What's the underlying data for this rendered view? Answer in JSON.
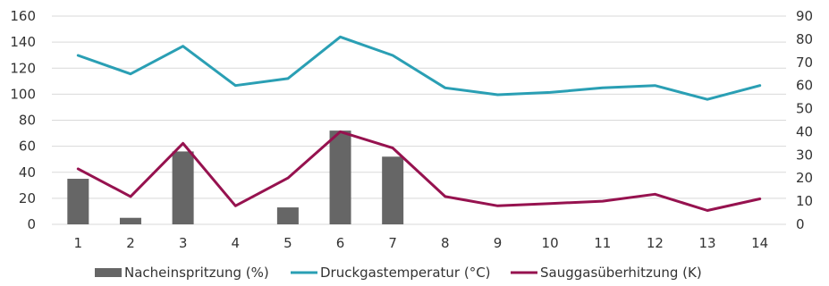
{
  "chart_data": {
    "type": "bar",
    "categories": [
      "1",
      "2",
      "3",
      "4",
      "5",
      "6",
      "7",
      "8",
      "9",
      "10",
      "11",
      "12",
      "13",
      "14"
    ],
    "y_left": {
      "min": 0,
      "max": 160,
      "ticks": [
        "0",
        "20",
        "40",
        "60",
        "80",
        "100",
        "120",
        "140",
        "160"
      ]
    },
    "y_right": {
      "min": 0,
      "max": 90,
      "ticks": [
        "0",
        "10",
        "20",
        "30",
        "40",
        "50",
        "60",
        "70",
        "80",
        "90"
      ]
    },
    "grid": true,
    "legend_position": "bottom",
    "series": [
      {
        "name": "Nacheinspritzung (%)",
        "type": "bar",
        "axis": "left",
        "color": "#666666",
        "values": [
          35,
          5,
          56,
          0,
          13,
          72,
          52,
          0,
          0,
          0,
          0,
          0,
          0,
          0
        ]
      },
      {
        "name": "Druckgastemperatur (°C)",
        "type": "line",
        "axis": "right",
        "color": "#2a9fb4",
        "values": [
          73,
          65,
          77,
          60,
          63,
          81,
          73,
          59,
          56,
          57,
          59,
          60,
          54,
          60
        ]
      },
      {
        "name": "Sauggasüberhitzung (K)",
        "type": "line",
        "axis": "right",
        "color": "#96124f",
        "values": [
          24,
          12,
          35,
          8,
          20,
          40,
          33,
          12,
          8,
          9,
          10,
          13,
          6,
          11
        ]
      }
    ]
  }
}
